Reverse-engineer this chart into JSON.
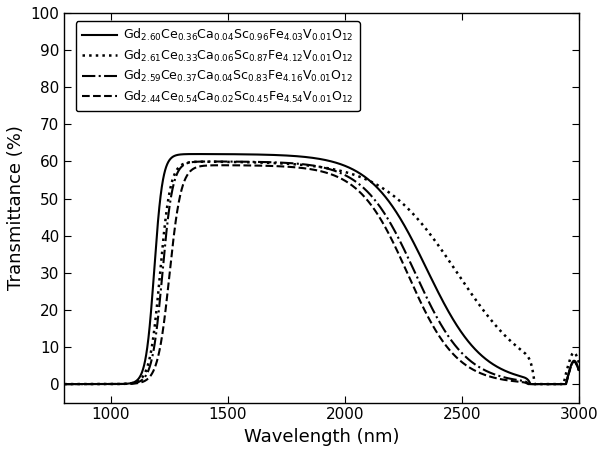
{
  "xlabel": "Wavelength (nm)",
  "ylabel": "Transmittance (%)",
  "xlim": [
    800,
    3000
  ],
  "ylim": [
    -5,
    100
  ],
  "xticks": [
    1000,
    1500,
    2000,
    2500,
    3000
  ],
  "yticks": [
    0,
    10,
    20,
    30,
    40,
    50,
    60,
    70,
    80,
    90,
    100
  ],
  "legend_labels": [
    "Gd$_{2.60}$Ce$_{0.36}$Ca$_{0.04}$Sc$_{0.96}$Fe$_{4.03}$V$_{0.01}$O$_{12}$",
    "Gd$_{2.61}$Ce$_{0.33}$Ca$_{0.06}$Sc$_{0.87}$Fe$_{4.12}$V$_{0.01}$O$_{12}$",
    "Gd$_{2.59}$Ce$_{0.37}$Ca$_{0.04}$Sc$_{0.83}$Fe$_{4.16}$V$_{0.01}$O$_{12}$",
    "Gd$_{2.44}$Ce$_{0.54}$Ca$_{0.02}$Sc$_{0.45}$Fe$_{4.54}$V$_{0.01}$O$_{12}$"
  ],
  "line_styles": [
    "solid",
    "dotted",
    "dashdot",
    "dashed"
  ],
  "line_color": "#000000",
  "background_color": "#ffffff",
  "font_size_labels": 13,
  "font_size_ticks": 11,
  "font_size_legend": 9.0
}
